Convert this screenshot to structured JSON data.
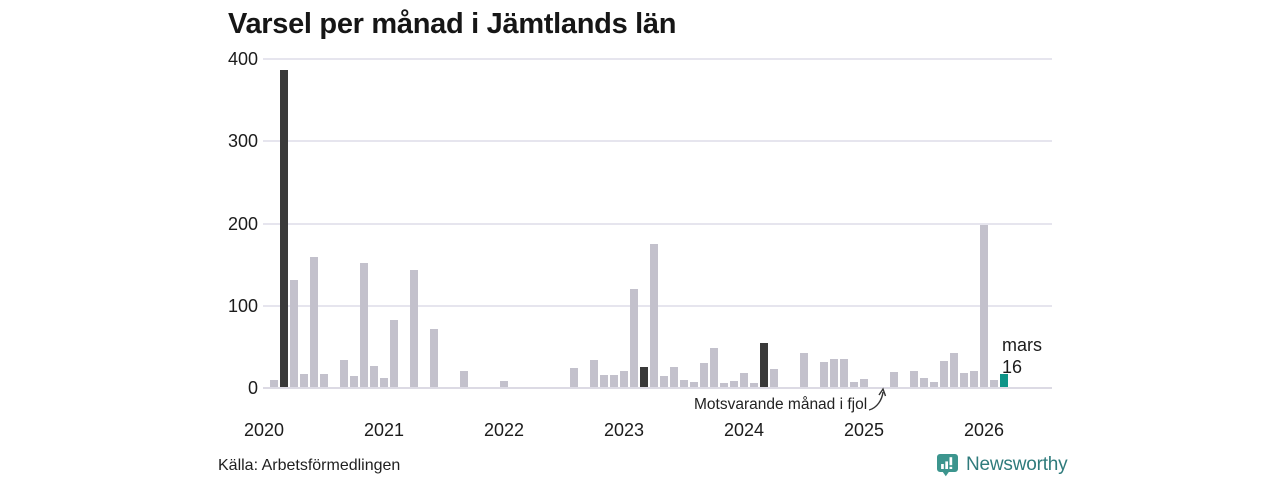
{
  "title": "Varsel per månad i Jämtlands län",
  "source": "Källa: Arbetsförmedlingen",
  "annotation": {
    "text": "Motsvarande månad i fjol",
    "target_month": "2025-03"
  },
  "current_label": {
    "line1": "mars",
    "line2": "16"
  },
  "brand": {
    "name": "Newsworthy"
  },
  "colors": {
    "bar_normal": "#c3c1cc",
    "bar_highlight": "#3a3a3a",
    "bar_current": "#0f9488",
    "grid": "#e6e5ee",
    "logo_icon": "#3c958e",
    "logo_text": "#2f7b7c"
  },
  "chart_data": {
    "type": "bar",
    "title": "Varsel per månad i Jämtlands län",
    "xlabel": "",
    "ylabel": "",
    "ylim": [
      0,
      400
    ],
    "y_ticks": [
      0,
      100,
      200,
      300,
      400
    ],
    "grid": true,
    "years": [
      "2020",
      "2021",
      "2022",
      "2023",
      "2024",
      "2025",
      "2026"
    ],
    "values_by_year": {
      "2020": [
        0,
        9,
        385,
        130,
        16,
        158,
        16,
        0,
        33,
        13,
        151,
        26
      ],
      "2021": [
        11,
        82,
        0,
        142,
        0,
        70,
        0,
        0,
        20,
        0,
        0,
        0
      ],
      "2022": [
        7,
        0,
        0,
        0,
        0,
        0,
        0,
        23,
        0,
        33,
        15,
        15
      ],
      "2023": [
        19,
        119,
        24,
        174,
        14,
        24,
        8,
        6,
        29,
        47,
        5,
        7
      ],
      "2024": [
        17,
        5,
        54,
        22,
        0,
        0,
        41,
        0,
        30,
        34,
        34,
        6
      ],
      "2025": [
        10,
        0,
        0,
        18,
        0,
        20,
        11,
        6,
        32,
        41,
        17,
        20
      ],
      "2026": [
        197,
        9,
        16
      ]
    },
    "highlight_months": [
      "2020-03",
      "2023-03",
      "2024-03"
    ],
    "current_month": "2026-03",
    "current_value": 16
  }
}
